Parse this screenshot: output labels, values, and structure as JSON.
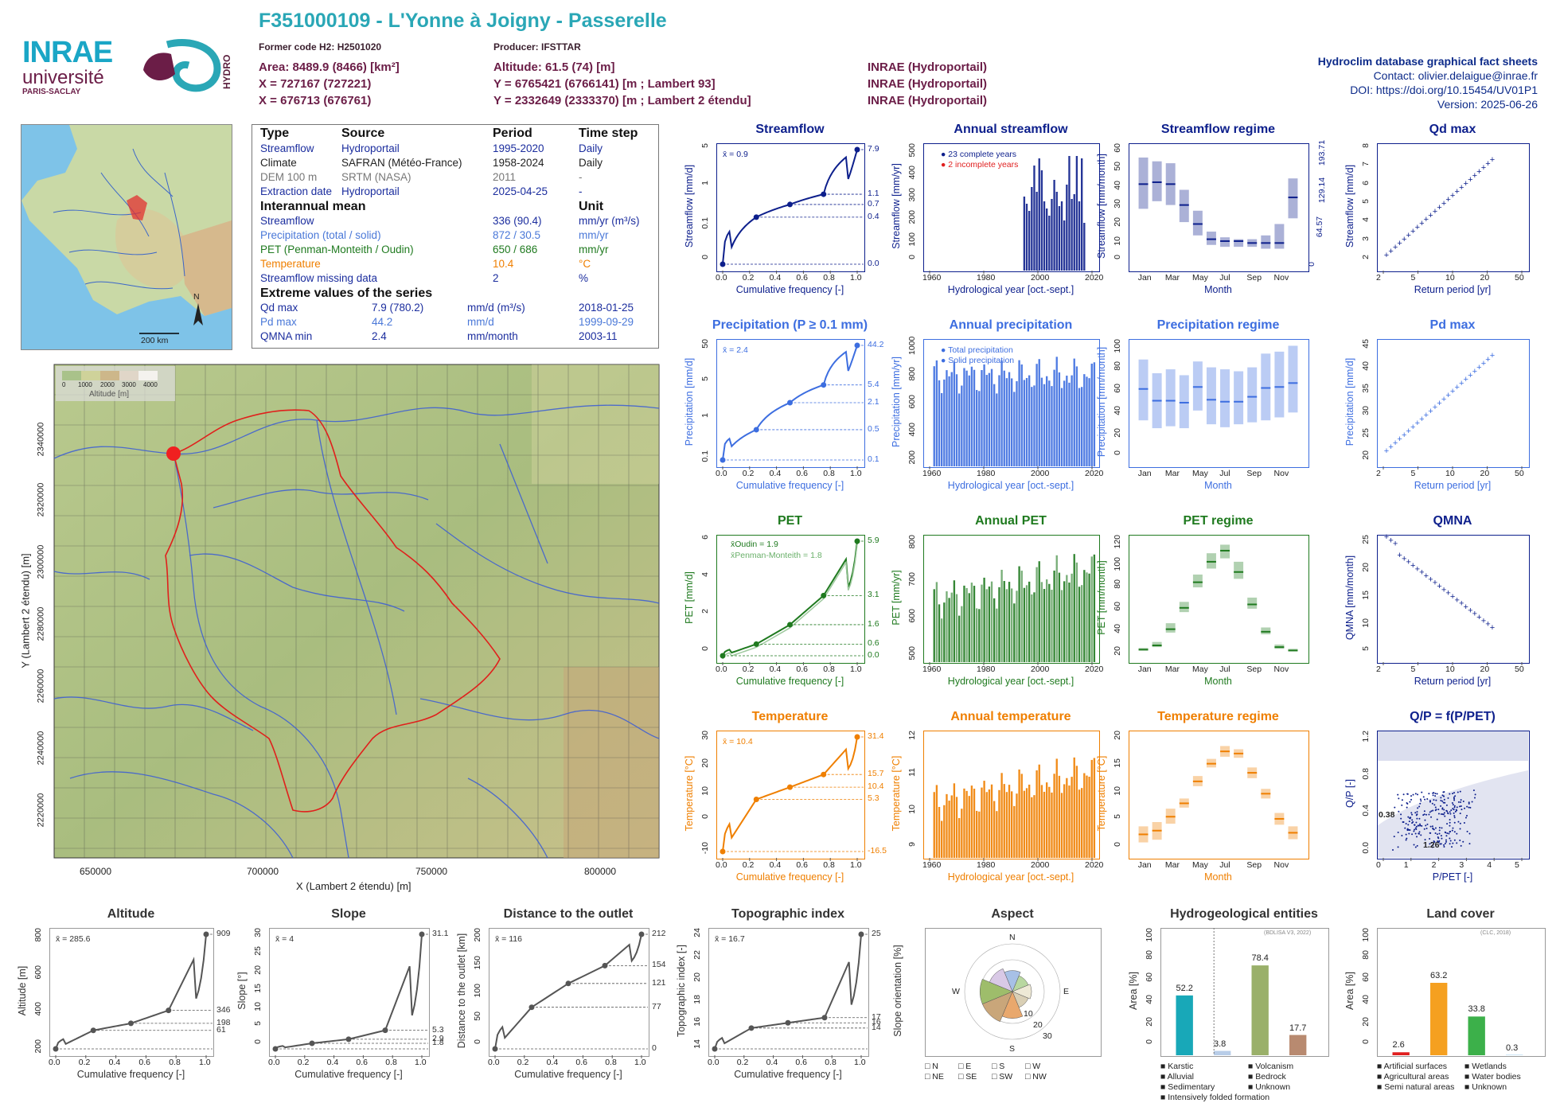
{
  "header": {
    "title": "F351000109 - L'Yonne à Joigny - Passerelle",
    "former_code": "Former code H2: H2501020",
    "producer": "Producer: IFSTTAR",
    "area": "Area: 8489.9 (8466) [km²]",
    "altitude": "Altitude: 61.5 (74) [m]",
    "x93": "X = 727167 (727221)",
    "y93": "Y = 6765421 (6766141) [m ; Lambert 93]",
    "x2": "X = 676713 (676761)",
    "y2": "Y = 2332649 (2333370) [m ; Lambert 2 étendu]",
    "src1": "INRAE (Hydroportail)",
    "src2": "INRAE (Hydroportail)",
    "src3": "INRAE (Hydroportail)"
  },
  "right_info": {
    "line1": "Hydroclim database graphical fact sheets",
    "line2": "Contact: olivier.delaigue@inrae.fr",
    "line3": "DOI: https://doi.org/10.15454/UV01P1",
    "line4": "Version: 2025-06-26"
  },
  "logos": {
    "inrae": "INRAE",
    "universite": "université",
    "paris": "PARIS-SACLAY",
    "hydro": "HYDRO"
  },
  "smallmap": {
    "scale": "200 km",
    "north": "N"
  },
  "info": {
    "h_type": "Type",
    "h_source": "Source",
    "h_period": "Period",
    "h_step": "Time step",
    "rows": [
      [
        "Streamflow",
        "Hydroportail",
        "1995-2020",
        "Daily",
        "#1b2d9e"
      ],
      [
        "Climate",
        "SAFRAN (Météo-France)",
        "1958-2024",
        "Daily",
        "#222"
      ],
      [
        "DEM 100 m",
        "SRTM (NASA)",
        "2011",
        "-",
        "#777"
      ],
      [
        "Extraction date",
        "Hydroportail",
        "2025-04-25",
        "-",
        "#1b2d9e"
      ]
    ],
    "h_inter": "Interannual mean",
    "h_unit": "Unit",
    "inter": [
      [
        "Streamflow",
        "336 (90.4)",
        "mm/yr (m³/s)",
        "#1b2d9e"
      ],
      [
        "Precipitation (total / solid)",
        "872 / 30.5",
        "mm/yr",
        "#4a78d8"
      ],
      [
        "PET (Penman-Monteith / Oudin)",
        "650 / 686",
        "mm/yr",
        "#1f7a1f"
      ],
      [
        "Temperature",
        "10.4",
        "°C",
        "#ef7f00"
      ],
      [
        "Streamflow missing data",
        "2",
        "%",
        "#1b2d9e"
      ]
    ],
    "h_ext": "Extreme values of the series",
    "ext": [
      [
        "Qd max",
        "7.9 (780.2)",
        "mm/d (m³/s)",
        "2018-01-25",
        "#1b2d9e"
      ],
      [
        "Pd max",
        "44.2",
        "mm/d",
        "1999-09-29",
        "#4a78d8"
      ],
      [
        "QMNA min",
        "2.4",
        "mm/month",
        "2003-11",
        "#1b2d9e"
      ]
    ]
  },
  "map": {
    "xticks": [
      "650000",
      "700000",
      "750000",
      "800000"
    ],
    "yticks": [
      "2340000",
      "2320000",
      "2300000",
      "2280000",
      "2260000",
      "2240000",
      "2220000"
    ],
    "xlabel": "X (Lambert 2 étendu) [m]",
    "ylabel": "Y (Lambert 2 étendu) [m]",
    "legend_ticks": [
      "0",
      "1000",
      "2000",
      "3000",
      "4000"
    ],
    "legend_title": "Altitude [m]"
  },
  "colors": {
    "flow": "#0d1f8c",
    "precip": "#3d6ee0",
    "pet": "#1f7a1f",
    "temp": "#ef7f00",
    "grey": "#555555",
    "ratio": "#0d1f8c"
  },
  "chart_data": [
    {
      "id": "streamflow",
      "type": "line",
      "title": "Streamflow",
      "xlabel": "Cumulative frequency [-]",
      "ylabel": "Streamflow [mm/d]",
      "mean_label": "x̄ = 0.9",
      "x": [
        0,
        0.25,
        0.5,
        0.75,
        1
      ],
      "y": [
        0.0,
        0.4,
        0.7,
        1.1,
        7.9
      ],
      "right_labels": [
        "7.9",
        "1.1",
        "0.7",
        "0.4",
        "0.0"
      ],
      "yticks": [
        "0",
        "0.1",
        "1",
        "5"
      ],
      "xticks": [
        "0.0",
        "0.2",
        "0.4",
        "0.6",
        "0.8",
        "1.0"
      ]
    },
    {
      "id": "annual_streamflow",
      "type": "bar",
      "title": "Annual streamflow",
      "xlabel": "Hydrological year [oct.-sept.]",
      "ylabel": "Streamflow [mm/yr]",
      "legend": [
        "23 complete years",
        "2 incomplete years"
      ],
      "xticks": [
        "1960",
        "1980",
        "2000",
        "2020"
      ],
      "yticks": [
        "0",
        "100",
        "200",
        "300",
        "400",
        "500"
      ],
      "ylim": [
        0,
        520
      ],
      "years": [
        1995,
        1996,
        1997,
        1998,
        1999,
        2000,
        2001,
        2002,
        2003,
        2004,
        2005,
        2006,
        2007,
        2008,
        2009,
        2010,
        2011,
        2012,
        2013,
        2014,
        2015,
        2016,
        2017,
        2018,
        2019
      ],
      "values": [
        310,
        280,
        250,
        350,
        440,
        330,
        470,
        420,
        290,
        260,
        230,
        300,
        380,
        330,
        270,
        290,
        210,
        360,
        480,
        300,
        320,
        480,
        290,
        470,
        200
      ]
    },
    {
      "id": "streamflow_regime",
      "type": "bar",
      "title": "Streamflow regime",
      "xlabel": "Month",
      "ylabel": "Streamflow [mm/month]",
      "yticks": [
        "0",
        "10",
        "20",
        "30",
        "40",
        "50",
        "60"
      ],
      "right_ticks": [
        "0",
        "64.57",
        "129.14",
        "193.71"
      ],
      "months": [
        "Jan",
        "Feb",
        "Mar",
        "Apr",
        "May",
        "Jun",
        "Jul",
        "Aug",
        "Sep",
        "Oct",
        "Nov",
        "Dec"
      ],
      "month_labels": [
        "Jan",
        "Mar",
        "May",
        "Jul",
        "Sep",
        "Nov"
      ],
      "median": [
        43,
        44,
        43,
        32,
        22,
        14,
        13,
        13,
        12,
        12,
        12,
        36
      ],
      "low": [
        30,
        34,
        32,
        23,
        16,
        11,
        10,
        10,
        10,
        9,
        9,
        25
      ],
      "high": [
        57,
        55,
        54,
        40,
        29,
        18,
        15,
        14,
        14,
        16,
        22,
        46
      ]
    },
    {
      "id": "qd_max",
      "type": "scatter",
      "title": "Qd max",
      "xlabel": "Return period [yr]",
      "ylabel": "Streamflow [mm/d]",
      "xticks": [
        "2",
        "5",
        "10",
        "20",
        "50"
      ],
      "yticks": [
        "2",
        "3",
        "4",
        "5",
        "6",
        "7",
        "8"
      ],
      "values": [
        2.0,
        2.2,
        2.3,
        2.6,
        3.0,
        3.3,
        3.6,
        3.8,
        4.0,
        4.2,
        4.4,
        4.7,
        5.0,
        5.2,
        5.5,
        5.8,
        6.1,
        6.3,
        6.4,
        6.5,
        6.6,
        6.7,
        6.9,
        7.1,
        7.9
      ]
    },
    {
      "id": "precipitation",
      "type": "line",
      "title": "Precipitation (P ≥ 0.1 mm)",
      "xlabel": "Cumulative frequency [-]",
      "ylabel": "Precipitation [mm/d]",
      "mean_label": "x̄ = 2.4",
      "x": [
        0,
        0.25,
        0.5,
        0.75,
        1
      ],
      "y": [
        0.1,
        0.5,
        2.1,
        5.4,
        44.2
      ],
      "right_labels": [
        "44.2",
        "5.4",
        "2.1",
        "0.5",
        "0.1"
      ],
      "yticks": [
        "0.1",
        "1",
        "5",
        "50"
      ],
      "xticks": [
        "0.0",
        "0.2",
        "0.4",
        "0.6",
        "0.8",
        "1.0"
      ]
    },
    {
      "id": "annual_precipitation",
      "type": "bar",
      "title": "Annual precipitation",
      "xlabel": "Hydrological year [oct.-sept.]",
      "ylabel": "Precipitation [mm/yr]",
      "legend": [
        "Total precipitation",
        "Solid precipitation"
      ],
      "xticks": [
        "1960",
        "1980",
        "2000",
        "2020"
      ],
      "yticks": [
        "200",
        "400",
        "600",
        "800",
        "1000"
      ]
    },
    {
      "id": "precipitation_regime",
      "type": "bar",
      "title": "Precipitation regime",
      "xlabel": "Month",
      "ylabel": "Precipitation [mm/month]",
      "yticks": [
        "0",
        "20",
        "40",
        "60",
        "80",
        "100"
      ],
      "month_labels": [
        "Jan",
        "Mar",
        "May",
        "Jul",
        "Sep",
        "Nov"
      ],
      "median": [
        74,
        62,
        62,
        60,
        76,
        63,
        61,
        61,
        66,
        75,
        76,
        80
      ],
      "low": [
        42,
        34,
        36,
        34,
        52,
        38,
        35,
        38,
        40,
        42,
        45,
        50
      ],
      "high": [
        104,
        90,
        94,
        88,
        102,
        96,
        94,
        92,
        96,
        110,
        112,
        118
      ]
    },
    {
      "id": "pd_max",
      "type": "scatter",
      "title": "Pd max",
      "xlabel": "Return period [yr]",
      "ylabel": "Precipitation [mm/d]",
      "xticks": [
        "2",
        "5",
        "10",
        "20",
        "50"
      ],
      "yticks": [
        "20",
        "25",
        "30",
        "35",
        "40",
        "45"
      ]
    },
    {
      "id": "pet",
      "type": "line",
      "title": "PET",
      "xlabel": "Cumulative frequency [-]",
      "ylabel": "PET [mm/d]",
      "legend": [
        "x̄Oudin = 1.9",
        "x̄Penman-Monteith = 1.8"
      ],
      "x": [
        0,
        0.25,
        0.5,
        0.75,
        1
      ],
      "y": [
        0.0,
        0.6,
        1.6,
        3.1,
        5.9
      ],
      "right_labels": [
        "5.9",
        "3.1",
        "1.6",
        "0.6",
        "0.0"
      ],
      "yticks": [
        "0",
        "2",
        "4",
        "6"
      ],
      "xticks": [
        "0.0",
        "0.2",
        "0.4",
        "0.6",
        "0.8",
        "1.0"
      ]
    },
    {
      "id": "annual_pet",
      "type": "bar",
      "title": "Annual PET",
      "xlabel": "Hydrological year [oct.-sept.]",
      "ylabel": "PET [mm/yr]",
      "xticks": [
        "1960",
        "1980",
        "2000",
        "2020"
      ],
      "yticks": [
        "500",
        "600",
        "700",
        "800"
      ]
    },
    {
      "id": "pet_regime",
      "type": "bar",
      "title": "PET regime",
      "xlabel": "Month",
      "ylabel": "PET [mm/month]",
      "yticks": [
        "20",
        "40",
        "60",
        "80",
        "100",
        "120"
      ],
      "month_labels": [
        "Jan",
        "Mar",
        "May",
        "Jul",
        "Sep",
        "Nov"
      ],
      "median": [
        9,
        14,
        33,
        58,
        88,
        112,
        125,
        100,
        62,
        30,
        12,
        8
      ],
      "low": [
        8,
        12,
        29,
        53,
        82,
        104,
        116,
        92,
        57,
        27,
        10,
        7
      ],
      "high": [
        11,
        18,
        40,
        65,
        97,
        122,
        132,
        112,
        70,
        35,
        15,
        10
      ]
    },
    {
      "id": "qmna",
      "type": "scatter",
      "title": "QMNA",
      "xlabel": "Return period [yr]",
      "ylabel": "QMNA [mm/month]",
      "xticks": [
        "2",
        "5",
        "10",
        "20",
        "50"
      ],
      "yticks": [
        "5",
        "10",
        "15",
        "20",
        "25"
      ]
    },
    {
      "id": "temperature",
      "type": "line",
      "title": "Temperature",
      "xlabel": "Cumulative frequency [-]",
      "ylabel": "Temperature [°C]",
      "mean_label": "x̄ = 10.4",
      "x": [
        0,
        0.25,
        0.5,
        0.75,
        1
      ],
      "y": [
        -16.5,
        5.3,
        10.4,
        15.7,
        31.4
      ],
      "right_labels": [
        "31.4",
        "15.7",
        "10.4",
        "5.3",
        "-16.5"
      ],
      "yticks": [
        "-10",
        "0",
        "10",
        "20",
        "30"
      ],
      "xticks": [
        "0.0",
        "0.2",
        "0.4",
        "0.6",
        "0.8",
        "1.0"
      ]
    },
    {
      "id": "annual_temperature",
      "type": "bar",
      "title": "Annual temperature",
      "xlabel": "Hydrological year [oct.-sept.]",
      "ylabel": "Temperature [°C]",
      "xticks": [
        "1960",
        "1980",
        "2000",
        "2020"
      ],
      "yticks": [
        "9",
        "10",
        "11",
        "12"
      ]
    },
    {
      "id": "temperature_regime",
      "type": "bar",
      "title": "Temperature regime",
      "xlabel": "Month",
      "ylabel": "Temperature [°C]",
      "yticks": [
        "0",
        "5",
        "10",
        "15",
        "20"
      ],
      "month_labels": [
        "Jan",
        "Mar",
        "May",
        "Jul",
        "Sep",
        "Nov"
      ],
      "median": [
        3.5,
        4.2,
        6.8,
        9.3,
        13.4,
        16.7,
        19.0,
        18.6,
        15.0,
        11.1,
        6.4,
        3.8
      ],
      "low": [
        2,
        2.5,
        5.5,
        8.5,
        12.5,
        16,
        18,
        17.8,
        14,
        10.2,
        5.3,
        2.6
      ],
      "high": [
        5,
        5.8,
        8.3,
        10.2,
        14.4,
        17.6,
        20,
        19.4,
        16,
        12,
        7.5,
        5
      ]
    },
    {
      "id": "q_p_ratio",
      "type": "scatter",
      "title": "Q/P = f(P/PET)",
      "xlabel": "P/PET [-]",
      "ylabel": "Q/P [-]",
      "xticks": [
        "0",
        "1",
        "2",
        "3",
        "4",
        "5"
      ],
      "yticks": [
        "0.0",
        "0.4",
        "0.8",
        "1.2"
      ],
      "annotations": [
        "0.38",
        "1.26"
      ]
    },
    {
      "id": "altitude",
      "type": "line",
      "title": "Altitude",
      "xlabel": "Cumulative frequency [-]",
      "ylabel": "Altitude [m]",
      "mean_label": "x̄ = 285.6",
      "x": [
        0,
        0.25,
        0.5,
        0.75,
        1
      ],
      "y": [
        61,
        198,
        250,
        346,
        909
      ],
      "right_labels": [
        "909",
        "346",
        "198",
        "61"
      ],
      "yticks": [
        "200",
        "400",
        "600",
        "800"
      ],
      "xticks": [
        "0.0",
        "0.2",
        "0.4",
        "0.6",
        "0.8",
        "1.0"
      ]
    },
    {
      "id": "slope",
      "type": "line",
      "title": "Slope",
      "xlabel": "Cumulative frequency [-]",
      "ylabel": "Slope [°]",
      "mean_label": "x̄ = 4",
      "x": [
        0,
        0.25,
        0.5,
        0.75,
        1
      ],
      "y": [
        0.3,
        1.8,
        2.9,
        5.3,
        31.1
      ],
      "right_labels": [
        "31.1",
        "5.3",
        "2.9",
        "1.8"
      ],
      "yticks": [
        "0",
        "5",
        "10",
        "15",
        "20",
        "25",
        "30"
      ],
      "xticks": [
        "0.0",
        "0.2",
        "0.4",
        "0.6",
        "0.8",
        "1.0"
      ]
    },
    {
      "id": "distance",
      "type": "line",
      "title": "Distance to the outlet",
      "xlabel": "Cumulative frequency [-]",
      "ylabel": "Distance to the outlet [km]",
      "mean_label": "x̄ = 116",
      "x": [
        0,
        0.25,
        0.5,
        0.75,
        1
      ],
      "y": [
        0,
        77,
        121,
        154,
        212
      ],
      "right_labels": [
        "212",
        "154",
        "121",
        "77",
        "0"
      ],
      "yticks": [
        "0",
        "50",
        "100",
        "150",
        "200"
      ],
      "xticks": [
        "0.0",
        "0.2",
        "0.4",
        "0.6",
        "0.8",
        "1.0"
      ]
    },
    {
      "id": "topographic_index",
      "type": "line",
      "title": "Topographic index",
      "xlabel": "Cumulative frequency [-]",
      "ylabel": "Topographic index [-]",
      "mean_label": "x̄ = 16.7",
      "x": [
        0,
        0.25,
        0.5,
        0.75,
        1
      ],
      "y": [
        14,
        16,
        16.5,
        17,
        25
      ],
      "right_labels": [
        "25",
        "17",
        "16",
        "14"
      ],
      "yticks": [
        "14",
        "16",
        "18",
        "20",
        "22",
        "24"
      ],
      "xticks": [
        "0.0",
        "0.2",
        "0.4",
        "0.6",
        "0.8",
        "1.0"
      ]
    },
    {
      "id": "aspect",
      "type": "pie",
      "title": "Aspect",
      "ylabel": "Slope orientation [%]",
      "directions": [
        "N",
        "NE",
        "E",
        "SE",
        "S",
        "SW",
        "W",
        "NW"
      ],
      "values": [
        11,
        9,
        10,
        9,
        14,
        17,
        17,
        13
      ],
      "rings": [
        "10",
        "20",
        "30"
      ],
      "legend": [
        "N",
        "E",
        "S",
        "W",
        "NE",
        "SE",
        "SW",
        "NW"
      ]
    },
    {
      "id": "hydrogeology",
      "type": "bar",
      "title": "Hydrogeological entities",
      "ylabel": "Area [%]",
      "source": "(BDLISA V3, 2022)",
      "yticks": [
        "0",
        "20",
        "40",
        "60",
        "80",
        "100"
      ],
      "categories": [
        "Karstic",
        "Alluvial",
        "Sedimentary",
        "Bedrock"
      ],
      "values": [
        52.2,
        3.8,
        78.4,
        17.7
      ],
      "labels": [
        "52.2",
        "3.8",
        "78.4",
        "17.7"
      ],
      "legend": [
        "Karstic",
        "Volcanism",
        "Alluvial",
        "Bedrock",
        "Sedimentary",
        "Unknown",
        "Intensively folded formation"
      ]
    },
    {
      "id": "land_cover",
      "type": "bar",
      "title": "Land cover",
      "ylabel": "Area [%]",
      "source": "(CLC, 2018)",
      "yticks": [
        "0",
        "20",
        "40",
        "60",
        "80",
        "100"
      ],
      "categories": [
        "Artificial surfaces",
        "Agricultural areas",
        "Semi natural areas",
        "Wetlands"
      ],
      "values": [
        2.6,
        63.2,
        33.8,
        0.3
      ],
      "labels": [
        "2.6",
        "63.2",
        "33.8",
        "0.3"
      ],
      "legend": [
        "Artificial surfaces",
        "Wetlands",
        "Agricultural areas",
        "Water bodies",
        "Semi natural areas",
        "Unknown"
      ]
    }
  ]
}
